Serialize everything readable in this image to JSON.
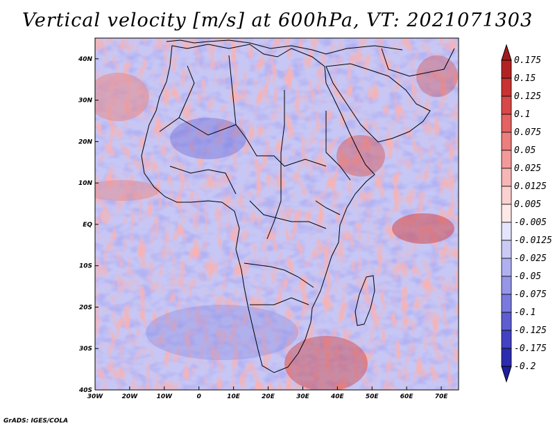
{
  "title": "Vertical velocity [m/s] at 600hPa, VT: 2021071303",
  "footer": "GrADS: IGES/COLA",
  "map": {
    "lon_range": [
      -30,
      75
    ],
    "lat_range": [
      -40,
      45
    ],
    "lat_ticks": [
      {
        "value": 40,
        "label": "40N"
      },
      {
        "value": 30,
        "label": "30N"
      },
      {
        "value": 20,
        "label": "20N"
      },
      {
        "value": 10,
        "label": "10N"
      },
      {
        "value": 0,
        "label": "EQ"
      },
      {
        "value": -10,
        "label": "10S"
      },
      {
        "value": -20,
        "label": "20S"
      },
      {
        "value": -30,
        "label": "30S"
      },
      {
        "value": -40,
        "label": "40S"
      }
    ],
    "lon_ticks": [
      {
        "value": -30,
        "label": "30W"
      },
      {
        "value": -20,
        "label": "20W"
      },
      {
        "value": -10,
        "label": "10W"
      },
      {
        "value": 0,
        "label": "0"
      },
      {
        "value": 10,
        "label": "10E"
      },
      {
        "value": 20,
        "label": "20E"
      },
      {
        "value": 30,
        "label": "30E"
      },
      {
        "value": 40,
        "label": "40E"
      },
      {
        "value": 50,
        "label": "50E"
      },
      {
        "value": 60,
        "label": "60E"
      },
      {
        "value": 70,
        "label": "70E"
      }
    ]
  },
  "colorbar": {
    "levels": [
      {
        "label": "0.175",
        "color": "#b22222"
      },
      {
        "label": "0.15",
        "color": "#c83232"
      },
      {
        "label": "0.125",
        "color": "#d84848"
      },
      {
        "label": "0.1",
        "color": "#e46262"
      },
      {
        "label": "0.075",
        "color": "#ec7e7e"
      },
      {
        "label": "0.05",
        "color": "#f29a9a"
      },
      {
        "label": "0.025",
        "color": "#f6b6b6"
      },
      {
        "label": "0.0125",
        "color": "#fad0d0"
      },
      {
        "label": "0.005",
        "color": "#fde8e8"
      },
      {
        "label": "-0.005",
        "color": "#ffffff"
      },
      {
        "label": "-0.0125",
        "color": "#e4e4fb"
      },
      {
        "label": "-0.025",
        "color": "#cacaf6"
      },
      {
        "label": "-0.05",
        "color": "#b0b0f0"
      },
      {
        "label": "-0.075",
        "color": "#9696e8"
      },
      {
        "label": "-0.1",
        "color": "#7a7ade"
      },
      {
        "label": "-0.125",
        "color": "#5e5ed2"
      },
      {
        "label": "-0.175",
        "color": "#4242c2"
      },
      {
        "label": "-0.2",
        "color": "#2c2cae"
      }
    ],
    "top_arrow_color": "#a01c1c",
    "bottom_arrow_color": "#1e1e9e"
  }
}
